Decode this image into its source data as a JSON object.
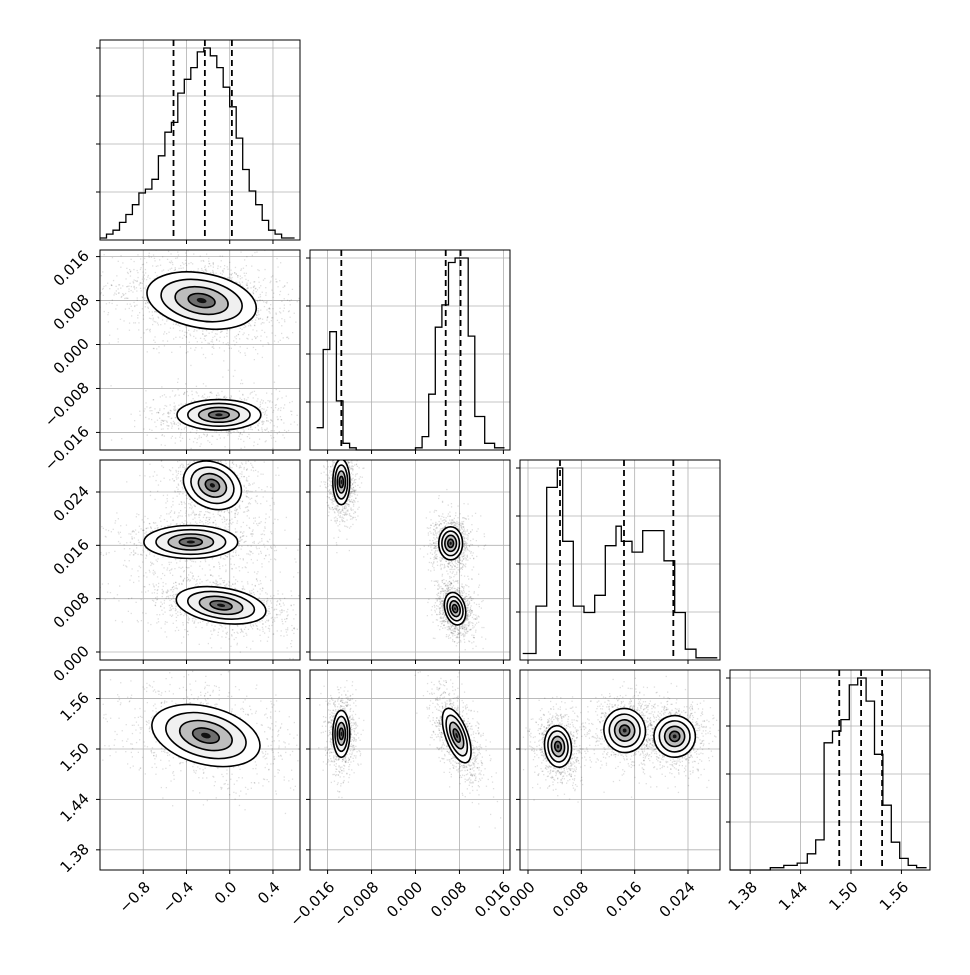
{
  "chart_data": {
    "type": "corner",
    "title": "",
    "grid": true,
    "parameters": [
      {
        "ticks": [
          -0.8,
          -0.4,
          0.0,
          0.4
        ],
        "tick_labels": [
          "−0.8",
          "−0.4",
          "0.0",
          "0.4"
        ],
        "range": [
          -1.2,
          0.65
        ],
        "quantiles": [
          -0.52,
          -0.23,
          0.02
        ]
      },
      {
        "ticks": [
          -0.016,
          -0.008,
          0.0,
          0.008,
          0.016
        ],
        "tick_labels": [
          "−0.016",
          "−0.008",
          "0.000",
          "0.008",
          "0.016"
        ],
        "range": [
          -0.0192,
          0.0172
        ],
        "quantiles": [
          -0.0135,
          0.0055,
          0.0082
        ]
      },
      {
        "ticks": [
          0.0,
          0.008,
          0.016,
          0.024
        ],
        "tick_labels": [
          "0.000",
          "0.008",
          "0.016",
          "0.024"
        ],
        "range": [
          -0.0012,
          0.0288
        ],
        "quantiles": [
          0.0048,
          0.0144,
          0.0218
        ]
      },
      {
        "ticks": [
          1.38,
          1.44,
          1.5,
          1.56
        ],
        "tick_labels": [
          "1.38",
          "1.44",
          "1.50",
          "1.56"
        ],
        "range": [
          1.356,
          1.594
        ],
        "quantiles": [
          1.486,
          1.512,
          1.537
        ]
      }
    ],
    "histograms": [
      {
        "bins": [
          -1.2,
          -1.14,
          -1.08,
          -1.02,
          -0.96,
          -0.9,
          -0.84,
          -0.78,
          -0.72,
          -0.66,
          -0.6,
          -0.54,
          -0.48,
          -0.42,
          -0.36,
          -0.3,
          -0.24,
          -0.18,
          -0.12,
          -0.06,
          0.0,
          0.06,
          0.12,
          0.18,
          0.24,
          0.3,
          0.36,
          0.42,
          0.48,
          0.54,
          0.6
        ],
        "counts": [
          1,
          3,
          5,
          9,
          13,
          18,
          24,
          26,
          31,
          43,
          55,
          60,
          75,
          82,
          88,
          96,
          98,
          94,
          88,
          78,
          68,
          52,
          36,
          25,
          18,
          10,
          5,
          3,
          1,
          1
        ]
      },
      {
        "bins": [
          -0.018,
          -0.0168,
          -0.0156,
          -0.0144,
          -0.0132,
          -0.012,
          -0.0108,
          -0.0096,
          -0.0084,
          -0.0072,
          -0.006,
          -0.0048,
          -0.0036,
          -0.0024,
          -0.0012,
          0.0,
          0.0012,
          0.0024,
          0.0036,
          0.0048,
          0.006,
          0.0072,
          0.0084,
          0.0096,
          0.0108,
          0.0126,
          0.0144,
          0.0162
        ],
        "counts": [
          10,
          45,
          53,
          22,
          3,
          1,
          0,
          0,
          0,
          0,
          0,
          0,
          0,
          0,
          0,
          1,
          6,
          25,
          55,
          65,
          84,
          86,
          86,
          51,
          15,
          3,
          1
        ]
      },
      {
        "bins": [
          -0.0008,
          0.0012,
          0.0028,
          0.0044,
          0.0052,
          0.0068,
          0.0084,
          0.01,
          0.0116,
          0.0132,
          0.014,
          0.0156,
          0.0172,
          0.0188,
          0.0204,
          0.022,
          0.0236,
          0.0252,
          0.0268,
          0.0284
        ],
        "counts": [
          3,
          25,
          80,
          89,
          55,
          25,
          22,
          30,
          53,
          62,
          55,
          50,
          60,
          60,
          46,
          22,
          5,
          1,
          1
        ]
      },
      {
        "bins": [
          1.356,
          1.372,
          1.388,
          1.404,
          1.42,
          1.436,
          1.448,
          1.458,
          1.468,
          1.478,
          1.488,
          1.498,
          1.508,
          1.518,
          1.528,
          1.538,
          1.548,
          1.558,
          1.568,
          1.578,
          1.59
        ],
        "counts": [
          0,
          0,
          0,
          1,
          2,
          3,
          7,
          13,
          55,
          60,
          65,
          80,
          83,
          73,
          50,
          28,
          12,
          5,
          2,
          1
        ]
      }
    ],
    "pairs": [
      {
        "x": 0,
        "y": 1,
        "blobs": [
          {
            "cx": -0.26,
            "cy": 0.008,
            "sx": 0.33,
            "sy": 0.0032,
            "angle": -0.18,
            "weight": 1.6
          },
          {
            "cx": -0.1,
            "cy": -0.0128,
            "sx": 0.25,
            "sy": 0.0018,
            "angle": 0.0,
            "weight": 0.9
          }
        ]
      },
      {
        "x": 0,
        "y": 2,
        "blobs": [
          {
            "cx": -0.16,
            "cy": 0.025,
            "sx": 0.18,
            "sy": 0.0022,
            "angle": -0.45,
            "weight": 1.0
          },
          {
            "cx": -0.36,
            "cy": 0.0165,
            "sx": 0.28,
            "sy": 0.0016,
            "angle": 0.0,
            "weight": 0.9
          },
          {
            "cx": -0.08,
            "cy": 0.007,
            "sx": 0.27,
            "sy": 0.0017,
            "angle": -0.15,
            "weight": 1.2
          }
        ]
      },
      {
        "x": 1,
        "y": 2,
        "blobs": [
          {
            "cx": -0.0135,
            "cy": 0.0255,
            "sx": 0.001,
            "sy": 0.0022,
            "angle": 0.0,
            "weight": 1.0
          },
          {
            "cx": 0.0064,
            "cy": 0.0163,
            "sx": 0.0014,
            "sy": 0.0016,
            "angle": 0.0,
            "weight": 1.0
          },
          {
            "cx": 0.0072,
            "cy": 0.0065,
            "sx": 0.0012,
            "sy": 0.0016,
            "angle": 0.25,
            "weight": 1.2
          }
        ]
      },
      {
        "x": 0,
        "y": 3,
        "blobs": [
          {
            "cx": -0.22,
            "cy": 1.516,
            "sx": 0.33,
            "sy": 0.022,
            "angle": -0.25,
            "weight": 1.0
          }
        ]
      },
      {
        "x": 1,
        "y": 3,
        "blobs": [
          {
            "cx": -0.0135,
            "cy": 1.518,
            "sx": 0.001,
            "sy": 0.018,
            "angle": 0.0,
            "weight": 0.9
          },
          {
            "cx": 0.0075,
            "cy": 1.516,
            "sx": 0.0013,
            "sy": 0.022,
            "angle": 0.35,
            "weight": 1.2
          }
        ]
      },
      {
        "x": 2,
        "y": 3,
        "blobs": [
          {
            "cx": 0.0045,
            "cy": 1.503,
            "sx": 0.0013,
            "sy": 0.016,
            "angle": 0.1,
            "weight": 1.0
          },
          {
            "cx": 0.0145,
            "cy": 1.522,
            "sx": 0.002,
            "sy": 0.017,
            "angle": 0.2,
            "weight": 1.0
          },
          {
            "cx": 0.022,
            "cy": 1.515,
            "sx": 0.002,
            "sy": 0.016,
            "angle": 0.15,
            "weight": 1.0
          }
        ]
      }
    ]
  }
}
